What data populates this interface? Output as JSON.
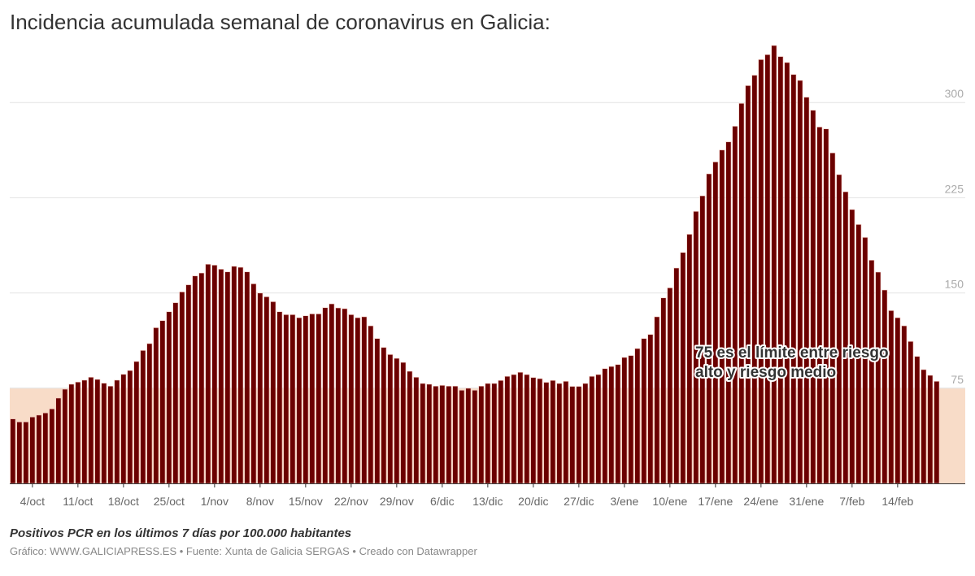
{
  "title": "Incidencia acumulada semanal de coronavirus en Galicia:",
  "subtitle": "Positivos PCR en los últimos 7 días por 100.000 habitantes",
  "footer": "Gráfico: WWW.GALICIAPRESS.ES • Fuente: Xunta de Galicia SERGAS • Creado con Datawrapper",
  "colors": {
    "bar": "#6b0000",
    "risk_band": "#f8dcc8",
    "grid": "#e2e2e2"
  },
  "chart_data": {
    "type": "bar",
    "title": "Incidencia acumulada semanal de coronavirus en Galicia:",
    "ylim": [
      0,
      345
    ],
    "yticks": [
      75,
      150,
      225,
      300
    ],
    "grid": true,
    "xtick_labels": [
      "4/oct",
      "11/oct",
      "18/oct",
      "25/oct",
      "1/nov",
      "8/nov",
      "15/nov",
      "22/nov",
      "29/nov",
      "6/dic",
      "13/dic",
      "20/dic",
      "27/dic",
      "3/ene",
      "10/ene",
      "17/ene",
      "24/ene",
      "31/ene",
      "7/feb",
      "14/feb"
    ],
    "categories": [
      "1/oct",
      "2/oct",
      "3/oct",
      "4/oct",
      "5/oct",
      "6/oct",
      "7/oct",
      "8/oct",
      "9/oct",
      "10/oct",
      "11/oct",
      "12/oct",
      "13/oct",
      "14/oct",
      "15/oct",
      "16/oct",
      "17/oct",
      "18/oct",
      "19/oct",
      "20/oct",
      "21/oct",
      "22/oct",
      "23/oct",
      "24/oct",
      "25/oct",
      "26/oct",
      "27/oct",
      "28/oct",
      "29/oct",
      "30/oct",
      "31/oct",
      "1/nov",
      "2/nov",
      "3/nov",
      "4/nov",
      "5/nov",
      "6/nov",
      "7/nov",
      "8/nov",
      "9/nov",
      "10/nov",
      "11/nov",
      "12/nov",
      "13/nov",
      "14/nov",
      "15/nov",
      "16/nov",
      "17/nov",
      "18/nov",
      "19/nov",
      "20/nov",
      "21/nov",
      "22/nov",
      "23/nov",
      "24/nov",
      "25/nov",
      "26/nov",
      "27/nov",
      "28/nov",
      "29/nov",
      "30/nov",
      "1/dic",
      "2/dic",
      "3/dic",
      "4/dic",
      "5/dic",
      "6/dic",
      "7/dic",
      "8/dic",
      "9/dic",
      "10/dic",
      "11/dic",
      "12/dic",
      "13/dic",
      "14/dic",
      "15/dic",
      "16/dic",
      "17/dic",
      "18/dic",
      "19/dic",
      "20/dic",
      "21/dic",
      "22/dic",
      "23/dic",
      "24/dic",
      "25/dic",
      "26/dic",
      "27/dic",
      "28/dic",
      "29/dic",
      "30/dic",
      "31/dic",
      "1/ene",
      "2/ene",
      "3/ene",
      "4/ene",
      "5/ene",
      "6/ene",
      "7/ene",
      "8/ene",
      "9/ene",
      "10/ene",
      "11/ene",
      "12/ene",
      "13/ene",
      "14/ene",
      "15/ene",
      "16/ene",
      "17/ene",
      "18/ene",
      "19/ene",
      "20/ene",
      "21/ene",
      "22/ene",
      "23/ene",
      "24/ene",
      "25/ene",
      "26/ene",
      "27/ene",
      "28/ene",
      "29/ene",
      "30/ene",
      "31/ene",
      "1/feb",
      "2/feb",
      "3/feb",
      "4/feb",
      "5/feb",
      "6/feb",
      "7/feb",
      "8/feb",
      "9/feb",
      "10/feb",
      "11/feb",
      "12/feb",
      "13/feb",
      "14/feb",
      "15/feb",
      "16/feb",
      "17/feb",
      "18/feb",
      "19/feb",
      "20/feb"
    ],
    "values": [
      50.8,
      48.4,
      48.4,
      52.3,
      53.8,
      55.5,
      58.7,
      67.2,
      74.2,
      78.1,
      79.8,
      81.3,
      83.6,
      81.9,
      78.9,
      76.6,
      81.3,
      85.9,
      88.9,
      96,
      104.7,
      110.1,
      122.6,
      128.2,
      135.2,
      142.3,
      150.8,
      156.4,
      163.4,
      165.7,
      172.6,
      171.9,
      168.7,
      166.6,
      171,
      170.2,
      166.6,
      157.2,
      149.9,
      147,
      143.1,
      135.2,
      132.9,
      132.9,
      130.5,
      132,
      133.5,
      133.5,
      138.4,
      141.4,
      138.2,
      137.6,
      132.9,
      130.5,
      131.2,
      124.1,
      114.1,
      107.1,
      101.5,
      98.5,
      95.3,
      88.3,
      83.6,
      78.7,
      78.1,
      76.6,
      77.2,
      76.6,
      76.6,
      73.4,
      74.9,
      73.4,
      76.6,
      78.7,
      78.7,
      81.1,
      84.3,
      85.7,
      87.5,
      85.7,
      83.4,
      82.5,
      79.6,
      81.1,
      78.7,
      80.4,
      76.4,
      76.4,
      78.7,
      84.3,
      85.7,
      90.4,
      92.1,
      93.6,
      99.2,
      100.7,
      106.2,
      114.1,
      117.3,
      131.2,
      146.1,
      154,
      169.6,
      181.9,
      196.2,
      214.2,
      226.5,
      243.8,
      253.2,
      262.6,
      269,
      281.3,
      299.3,
      313.3,
      321.5,
      333.8,
      337.7,
      344.9,
      336.2,
      331.5,
      322.1,
      317.4,
      304.2,
      293.9,
      280.7,
      279.2,
      260.3,
      243.2,
      229.7,
      215.7,
      203.9,
      193.7,
      175.8,
      166.4,
      152.3,
      136.1,
      130.5,
      124.1,
      111.8,
      100,
      89.6,
      85.1,
      80.4
    ],
    "reference_band": {
      "from": 0,
      "to": 75
    },
    "annotation": {
      "line1": "75 es el límite entre riesgo",
      "line2": "alto y riesgo medio"
    }
  }
}
